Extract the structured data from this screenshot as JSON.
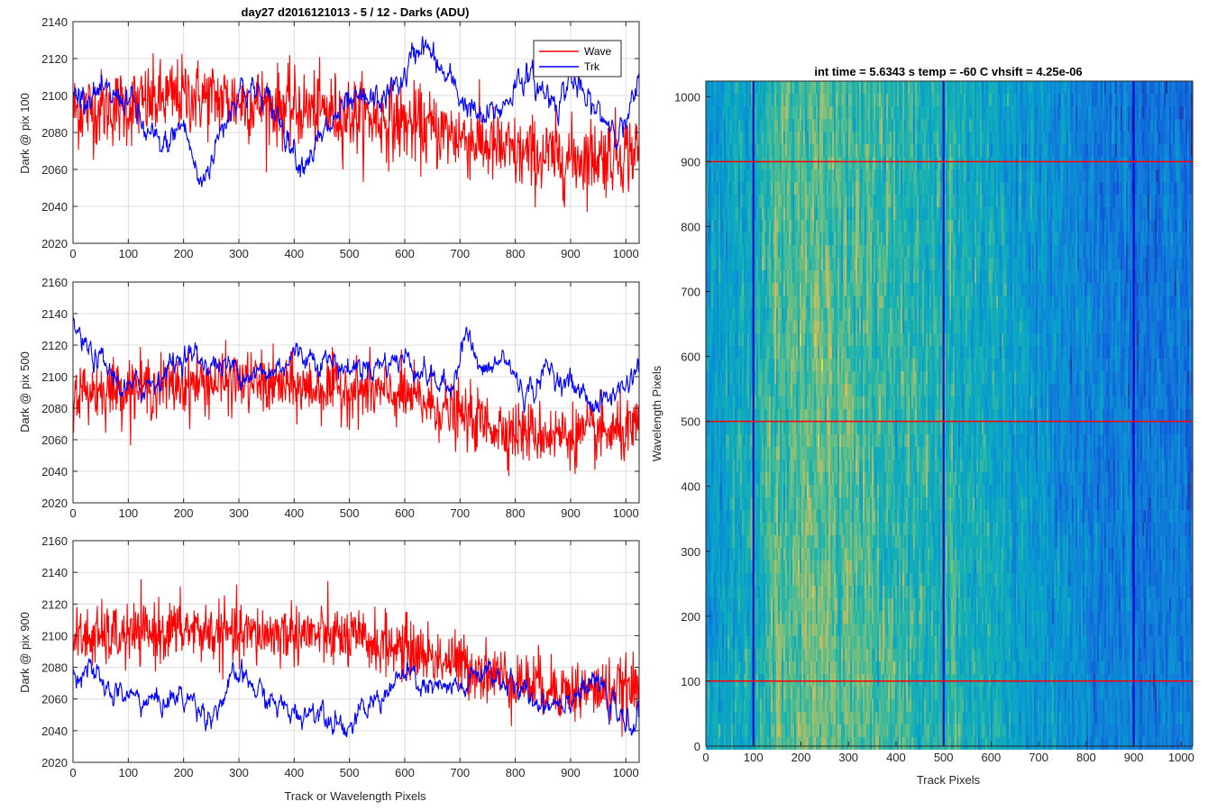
{
  "chart_data": [
    {
      "type": "line",
      "title": "day27 d2016121013 - 5 / 12 - Darks (ADU)",
      "ylabel": "Dark @ pix 100",
      "xlabel": "",
      "xlim": [
        0,
        1024
      ],
      "ylim": [
        2020,
        2140
      ],
      "xticks": [
        0,
        100,
        200,
        300,
        400,
        500,
        600,
        700,
        800,
        900,
        1000
      ],
      "yticks": [
        2020,
        2040,
        2060,
        2080,
        2100,
        2120,
        2140
      ],
      "grid": true,
      "legend": "top-right",
      "series": [
        {
          "name": "Wave",
          "color": "#ff0000",
          "trend_x": [
            0,
            100,
            200,
            300,
            400,
            500,
            600,
            700,
            800,
            900,
            1024
          ],
          "trend_y": [
            2092,
            2094,
            2100,
            2097,
            2093,
            2090,
            2085,
            2078,
            2068,
            2066,
            2070
          ],
          "spread": 14
        },
        {
          "name": "Trk",
          "color": "#0000ff",
          "trend_x": [
            0,
            30,
            60,
            100,
            130,
            160,
            200,
            230,
            260,
            300,
            340,
            380,
            410,
            450,
            480,
            520,
            560,
            600,
            630,
            660,
            700,
            740,
            780,
            810,
            850,
            880,
            900,
            930,
            960,
            1000,
            1024
          ],
          "trend_y": [
            2100,
            2102,
            2098,
            2100,
            2080,
            2070,
            2085,
            2050,
            2075,
            2105,
            2100,
            2085,
            2065,
            2075,
            2090,
            2095,
            2098,
            2110,
            2130,
            2115,
            2100,
            2085,
            2095,
            2112,
            2102,
            2098,
            2110,
            2095,
            2088,
            2082,
            2105
          ],
          "spread": 5
        }
      ]
    },
    {
      "type": "line",
      "ylabel": "Dark @ pix 500",
      "xlabel": "",
      "xlim": [
        0,
        1024
      ],
      "ylim": [
        2020,
        2160
      ],
      "xticks": [
        0,
        100,
        200,
        300,
        400,
        500,
        600,
        700,
        800,
        900,
        1000
      ],
      "yticks": [
        2020,
        2040,
        2060,
        2080,
        2100,
        2120,
        2140,
        2160
      ],
      "grid": true,
      "series": [
        {
          "name": "Wave",
          "color": "#ff0000",
          "trend_x": [
            0,
            100,
            200,
            300,
            400,
            500,
            600,
            700,
            800,
            900,
            1024
          ],
          "trend_y": [
            2090,
            2093,
            2095,
            2097,
            2093,
            2092,
            2088,
            2075,
            2065,
            2063,
            2065
          ],
          "spread": 13
        },
        {
          "name": "Trk",
          "color": "#0000ff",
          "trend_x": [
            0,
            20,
            60,
            100,
            150,
            200,
            250,
            300,
            350,
            400,
            450,
            500,
            550,
            600,
            640,
            680,
            710,
            740,
            780,
            820,
            860,
            900,
            950,
            1000,
            1024
          ],
          "trend_y": [
            2135,
            2118,
            2105,
            2090,
            2098,
            2115,
            2108,
            2105,
            2100,
            2115,
            2112,
            2105,
            2108,
            2112,
            2102,
            2090,
            2130,
            2100,
            2112,
            2088,
            2105,
            2095,
            2082,
            2095,
            2108
          ],
          "spread": 5
        }
      ]
    },
    {
      "type": "line",
      "ylabel": "Dark @ pix 900",
      "xlabel": "Track or Wavelength Pixels",
      "xlim": [
        0,
        1024
      ],
      "ylim": [
        2020,
        2160
      ],
      "xticks": [
        0,
        100,
        200,
        300,
        400,
        500,
        600,
        700,
        800,
        900,
        1000
      ],
      "yticks": [
        2020,
        2040,
        2060,
        2080,
        2100,
        2120,
        2140,
        2160
      ],
      "grid": true,
      "series": [
        {
          "name": "Wave",
          "color": "#ff0000",
          "trend_x": [
            0,
            100,
            200,
            300,
            400,
            500,
            600,
            700,
            800,
            900,
            1024
          ],
          "trend_y": [
            2098,
            2100,
            2104,
            2100,
            2102,
            2098,
            2092,
            2082,
            2072,
            2065,
            2066
          ],
          "spread": 13
        },
        {
          "name": "Trk",
          "color": "#0000ff",
          "trend_x": [
            0,
            20,
            60,
            100,
            150,
            200,
            250,
            300,
            350,
            400,
            450,
            500,
            550,
            600,
            650,
            700,
            750,
            800,
            850,
            900,
            950,
            1000,
            1024
          ],
          "trend_y": [
            2075,
            2082,
            2065,
            2062,
            2058,
            2062,
            2050,
            2075,
            2060,
            2050,
            2055,
            2042,
            2060,
            2075,
            2065,
            2065,
            2080,
            2065,
            2058,
            2062,
            2070,
            2042,
            2050
          ],
          "spread": 5
        }
      ]
    },
    {
      "type": "heatmap",
      "title": "int time = 5.6343 s    temp = -60 C    vhsift = 4.25e-06",
      "xlabel": "Track Pixels",
      "ylabel": "Wavelength Pixels",
      "xlim": [
        0,
        1024
      ],
      "ylim": [
        0,
        1024
      ],
      "xticks": [
        0,
        100,
        200,
        300,
        400,
        500,
        600,
        700,
        800,
        900,
        1000
      ],
      "yticks": [
        0,
        100,
        200,
        300,
        400,
        500,
        600,
        700,
        800,
        900,
        1000
      ],
      "vertical_lines": [
        100,
        500,
        900
      ],
      "vertical_line_color": "#0000cc",
      "horizontal_lines": [
        100,
        500,
        900
      ],
      "horizontal_line_color": "#ff0000",
      "column_profile_x": [
        0,
        100,
        150,
        200,
        300,
        400,
        500,
        550,
        600,
        700,
        800,
        900,
        1024
      ],
      "column_profile_v": [
        0.45,
        0.6,
        0.7,
        0.75,
        0.72,
        0.65,
        0.62,
        0.6,
        0.55,
        0.45,
        0.35,
        0.3,
        0.3
      ]
    }
  ]
}
